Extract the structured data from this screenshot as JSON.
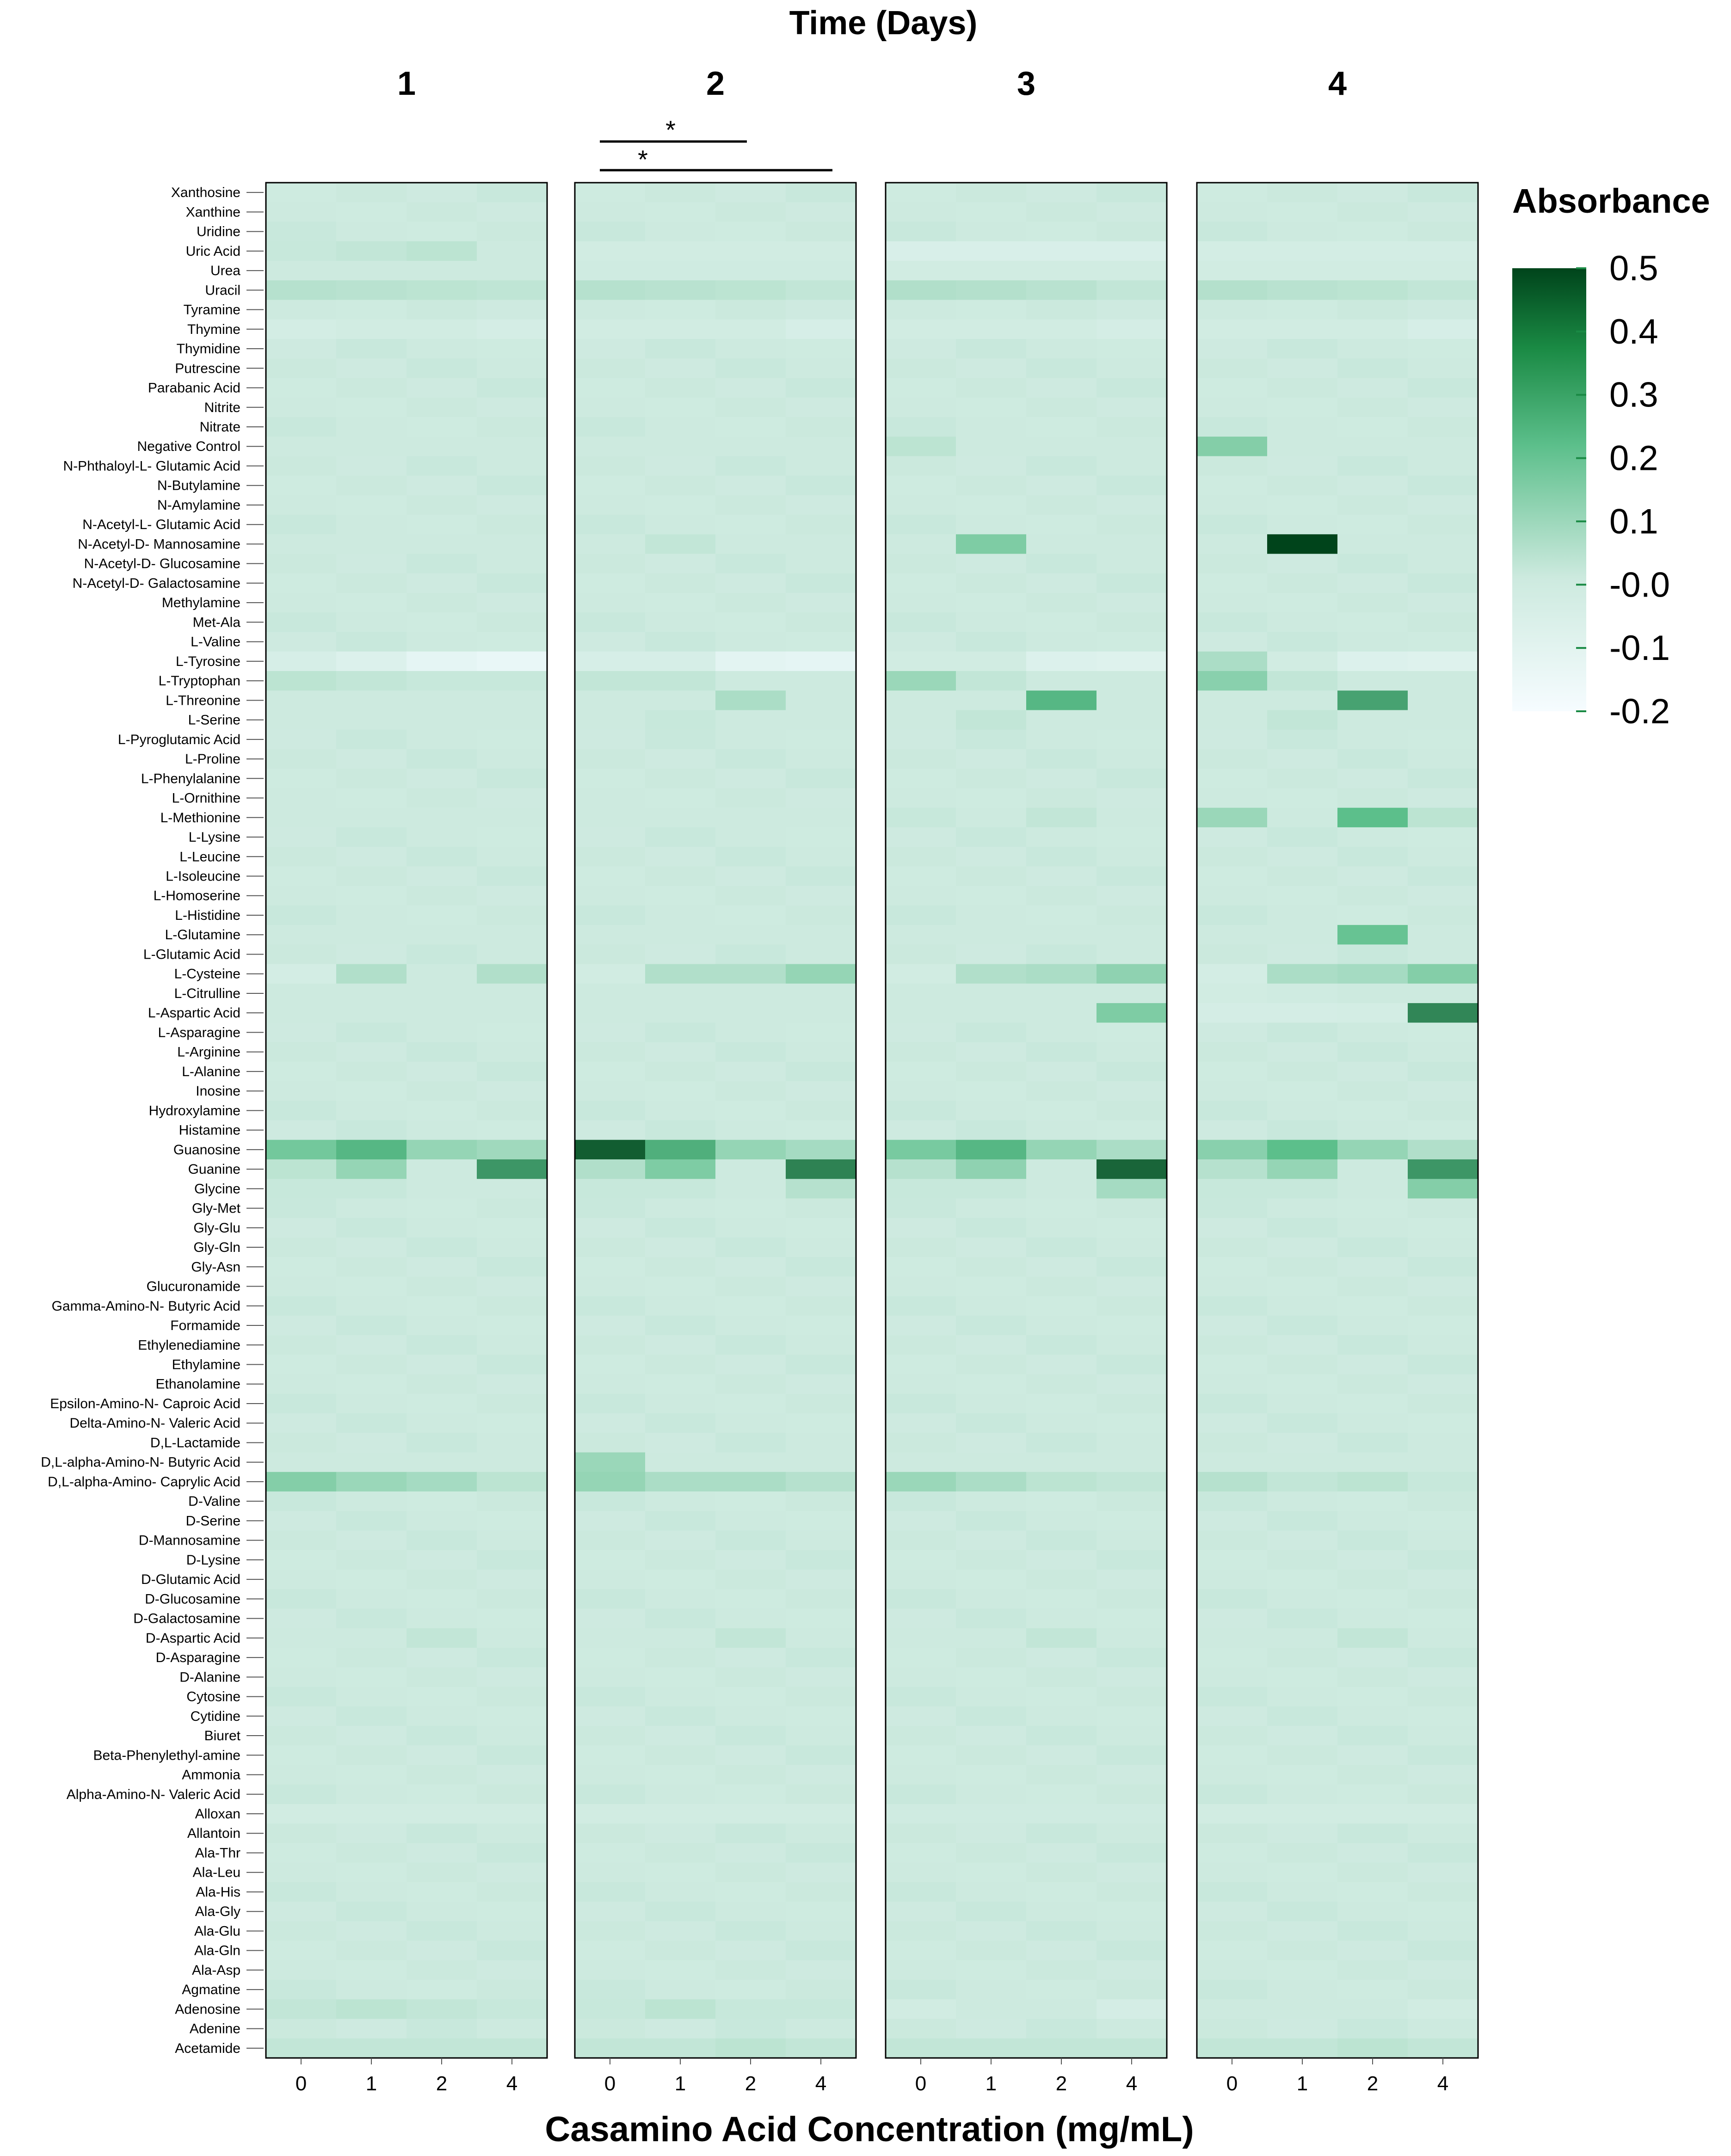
{
  "chart_data": {
    "type": "heatmap",
    "title": "Time (Days)",
    "xlabel": "Casamino Acid Concentration (mg/mL)",
    "panels": [
      "1",
      "2",
      "3",
      "4"
    ],
    "concentrations": [
      "0",
      "1",
      "2",
      "4"
    ],
    "legend": {
      "title": "Absorbance",
      "ticks": [
        "0.5",
        "0.4",
        "0.3",
        "0.2",
        "0.1",
        "-0.0",
        "-0.1",
        "-0.2"
      ],
      "range": [
        -0.2,
        0.5
      ],
      "low_color": "#f2fbff",
      "mid_color": "#cdeadf",
      "high_color": "#00441b"
    },
    "significance": [
      "*",
      "*"
    ],
    "default_value": 0.0,
    "row_labels": [
      "Xanthosine",
      "Xanthine",
      "Uridine",
      "Uric Acid",
      "Urea",
      "Uracil",
      "Tyramine",
      "Thymine",
      "Thymidine",
      "Putrescine",
      "Parabanic Acid",
      "Nitrite",
      "Nitrate",
      "Negative Control",
      "N-Phthaloyl-L- Glutamic Acid",
      "N-Butylamine",
      "N-Amylamine",
      "N-Acetyl-L- Glutamic Acid",
      "N-Acetyl-D- Mannosamine",
      "N-Acetyl-D- Glucosamine",
      "N-Acetyl-D- Galactosamine",
      "Methylamine",
      "Met-Ala",
      "L-Valine",
      "L-Tyrosine",
      "L-Tryptophan",
      "L-Threonine",
      "L-Serine",
      "L-Pyroglutamic Acid",
      "L-Proline",
      "L-Phenylalanine",
      "L-Ornithine",
      "L-Methionine",
      "L-Lysine",
      "L-Leucine",
      "L-Isoleucine",
      "L-Homoserine",
      "L-Histidine",
      "L-Glutamine",
      "L-Glutamic Acid",
      "L-Cysteine",
      "L-Citrulline",
      "L-Aspartic Acid",
      "L-Asparagine",
      "L-Arginine",
      "L-Alanine",
      "Inosine",
      "Hydroxylamine",
      "Histamine",
      "Guanosine",
      "Guanine",
      "Glycine",
      "Gly-Met",
      "Gly-Glu",
      "Gly-Gln",
      "Gly-Asn",
      "Glucuronamide",
      "Gamma-Amino-N- Butyric Acid",
      "Formamide",
      "Ethylenediamine",
      "Ethylamine",
      "Ethanolamine",
      "Epsilon-Amino-N- Caproic Acid",
      "Delta-Amino-N- Valeric Acid",
      "D,L-Lactamide",
      "D,L-alpha-Amino-N- Butyric Acid",
      "D,L-alpha-Amino- Caprylic Acid",
      "D-Valine",
      "D-Serine",
      "D-Mannosamine",
      "D-Lysine",
      "D-Glutamic Acid",
      "D-Glucosamine",
      "D-Galactosamine",
      "D-Aspartic Acid",
      "D-Asparagine",
      "D-Alanine",
      "Cytosine",
      "Cytidine",
      "Biuret",
      "Beta-Phenylethyl-amine",
      "Ammonia",
      "Alpha-Amino-N- Valeric Acid",
      "Alloxan",
      "Allantoin",
      "Ala-Thr",
      "Ala-Leu",
      "Ala-His",
      "Ala-Gly",
      "Ala-Glu",
      "Ala-Gln",
      "Ala-Asp",
      "Agmatine",
      "Adenosine",
      "Adenine",
      "Acetamide"
    ],
    "values": {
      "Uracil": [
        [
          0.04,
          0.035,
          0.03,
          0.025
        ],
        [
          0.04,
          0.035,
          0.03,
          0.02
        ],
        [
          0.05,
          0.045,
          0.035,
          0.02
        ],
        [
          0.045,
          0.035,
          0.03,
          0.02
        ]
      ],
      "Thymine": [
        [
          -0.03,
          -0.02,
          -0.02,
          -0.04
        ],
        [
          -0.02,
          -0.02,
          -0.02,
          -0.05
        ],
        [
          -0.02,
          -0.02,
          -0.02,
          -0.04
        ],
        [
          -0.02,
          -0.02,
          -0.02,
          -0.05
        ]
      ],
      "Uric Acid": [
        [
          0.01,
          0.02,
          0.03,
          0.0
        ],
        [
          -0.02,
          -0.02,
          -0.02,
          -0.02
        ],
        [
          -0.06,
          -0.06,
          -0.06,
          -0.06
        ],
        [
          -0.03,
          -0.03,
          -0.03,
          -0.03
        ]
      ],
      "Urea": [
        [
          0.0,
          0.0,
          0.0,
          0.0
        ],
        [
          -0.01,
          -0.01,
          -0.01,
          -0.01
        ],
        [
          -0.02,
          -0.02,
          -0.02,
          -0.02
        ],
        [
          -0.02,
          -0.02,
          -0.02,
          -0.02
        ]
      ],
      "Negative Control": [
        [
          0.0,
          0.0,
          0.0,
          0.0
        ],
        [
          0.0,
          0.0,
          0.0,
          0.0
        ],
        [
          0.03,
          0.0,
          0.0,
          0.0
        ],
        [
          0.13,
          0.0,
          0.0,
          0.0
        ]
      ],
      "N-Acetyl-D- Mannosamine": [
        [
          0.0,
          0.0,
          0.0,
          0.0
        ],
        [
          0.0,
          0.02,
          0.0,
          0.0
        ],
        [
          0.0,
          0.14,
          0.0,
          0.0
        ],
        [
          0.0,
          0.5,
          0.0,
          0.0
        ]
      ],
      "L-Tyrosine": [
        [
          -0.05,
          -0.08,
          -0.13,
          -0.15
        ],
        [
          -0.05,
          -0.05,
          -0.12,
          -0.13
        ],
        [
          -0.02,
          -0.02,
          -0.08,
          -0.09
        ],
        [
          0.06,
          -0.02,
          -0.08,
          -0.09
        ]
      ],
      "L-Tryptophan": [
        [
          0.03,
          0.02,
          0.01,
          0.01
        ],
        [
          0.02,
          0.02,
          0.0,
          0.0
        ],
        [
          0.09,
          0.02,
          0.0,
          0.0
        ],
        [
          0.12,
          0.02,
          0.0,
          0.0
        ]
      ],
      "L-Threonine": [
        [
          0.0,
          0.0,
          0.0,
          0.0
        ],
        [
          0.0,
          0.0,
          0.06,
          0.0
        ],
        [
          0.0,
          0.0,
          0.22,
          0.0
        ],
        [
          0.0,
          0.0,
          0.27,
          0.0
        ]
      ],
      "L-Serine": [
        [
          0.0,
          0.0,
          0.0,
          0.0
        ],
        [
          0.0,
          0.01,
          0.0,
          0.0
        ],
        [
          0.0,
          0.02,
          0.0,
          0.0
        ],
        [
          0.0,
          0.02,
          0.0,
          0.0
        ]
      ],
      "L-Methionine": [
        [
          0.0,
          0.0,
          0.0,
          0.0
        ],
        [
          0.0,
          0.0,
          0.0,
          0.0
        ],
        [
          0.01,
          0.0,
          0.02,
          0.0
        ],
        [
          0.09,
          0.0,
          0.2,
          0.03
        ]
      ],
      "L-Glutamine": [
        [
          0.0,
          0.0,
          0.0,
          0.0
        ],
        [
          0.0,
          0.0,
          0.0,
          0.0
        ],
        [
          0.0,
          0.0,
          0.0,
          0.0
        ],
        [
          0.0,
          0.0,
          0.18,
          0.0
        ]
      ],
      "L-Cysteine": [
        [
          -0.03,
          0.05,
          0.0,
          0.05
        ],
        [
          -0.02,
          0.05,
          0.05,
          0.1
        ],
        [
          -0.02,
          0.05,
          0.06,
          0.11
        ],
        [
          -0.03,
          0.06,
          0.07,
          0.13
        ]
      ],
      "L-Citrulline": [
        [
          0.0,
          0.0,
          0.0,
          0.0
        ],
        [
          0.0,
          0.0,
          0.0,
          0.0
        ],
        [
          0.0,
          0.0,
          0.0,
          0.0
        ],
        [
          -0.02,
          -0.01,
          0.0,
          0.0
        ]
      ],
      "L-Aspartic Acid": [
        [
          0.0,
          0.0,
          0.0,
          0.0
        ],
        [
          0.0,
          0.0,
          0.0,
          0.0
        ],
        [
          0.0,
          0.0,
          0.0,
          0.14
        ],
        [
          -0.04,
          -0.04,
          -0.03,
          0.34
        ]
      ],
      "Guanosine": [
        [
          0.16,
          0.22,
          0.1,
          0.08
        ],
        [
          0.44,
          0.24,
          0.1,
          0.07
        ],
        [
          0.15,
          0.22,
          0.1,
          0.06
        ],
        [
          0.12,
          0.2,
          0.1,
          0.05
        ]
      ],
      "Guanine": [
        [
          0.03,
          0.1,
          0.0,
          0.3
        ],
        [
          0.05,
          0.14,
          0.0,
          0.35
        ],
        [
          0.04,
          0.11,
          0.0,
          0.42
        ],
        [
          0.04,
          0.1,
          0.0,
          0.3
        ]
      ],
      "Glycine": [
        [
          0.01,
          0.01,
          0.0,
          0.0
        ],
        [
          0.01,
          0.01,
          0.0,
          0.04
        ],
        [
          0.01,
          0.01,
          0.0,
          0.07
        ],
        [
          0.01,
          0.01,
          0.0,
          0.13
        ]
      ],
      "D,L-alpha-Amino-N- Butyric Acid": [
        [
          0.0,
          0.0,
          0.0,
          0.0
        ],
        [
          0.09,
          0.0,
          0.0,
          0.0
        ],
        [
          0.0,
          0.0,
          0.0,
          0.0
        ],
        [
          0.0,
          0.0,
          0.0,
          0.0
        ]
      ],
      "D,L-alpha-Amino- Caprylic Acid": [
        [
          0.13,
          0.09,
          0.07,
          0.03
        ],
        [
          0.1,
          0.06,
          0.06,
          0.04
        ],
        [
          0.09,
          0.06,
          0.03,
          0.02
        ],
        [
          0.04,
          0.02,
          0.03,
          0.01
        ]
      ],
      "D-Aspartic Acid": [
        [
          0.0,
          0.0,
          0.02,
          0.0
        ],
        [
          0.0,
          0.0,
          0.02,
          0.0
        ],
        [
          0.0,
          0.0,
          0.02,
          0.0
        ],
        [
          0.0,
          0.0,
          0.02,
          0.0
        ]
      ],
      "Alloxan": [
        [
          -0.02,
          -0.02,
          -0.02,
          -0.02
        ],
        [
          -0.02,
          -0.02,
          -0.02,
          -0.02
        ],
        [
          -0.01,
          -0.01,
          -0.01,
          -0.01
        ],
        [
          -0.02,
          -0.02,
          -0.02,
          -0.02
        ]
      ],
      "Adenosine": [
        [
          0.02,
          0.03,
          0.02,
          0.01
        ],
        [
          0.01,
          0.03,
          0.01,
          0.01
        ],
        [
          -0.02,
          0.0,
          0.0,
          -0.04
        ],
        [
          0.0,
          0.0,
          0.0,
          -0.02
        ]
      ],
      "Acetamide": [
        [
          0.02,
          0.02,
          0.02,
          0.02
        ],
        [
          0.02,
          0.02,
          0.03,
          0.02
        ],
        [
          0.02,
          0.02,
          0.02,
          0.02
        ],
        [
          0.02,
          0.02,
          0.03,
          0.02
        ]
      ]
    }
  }
}
